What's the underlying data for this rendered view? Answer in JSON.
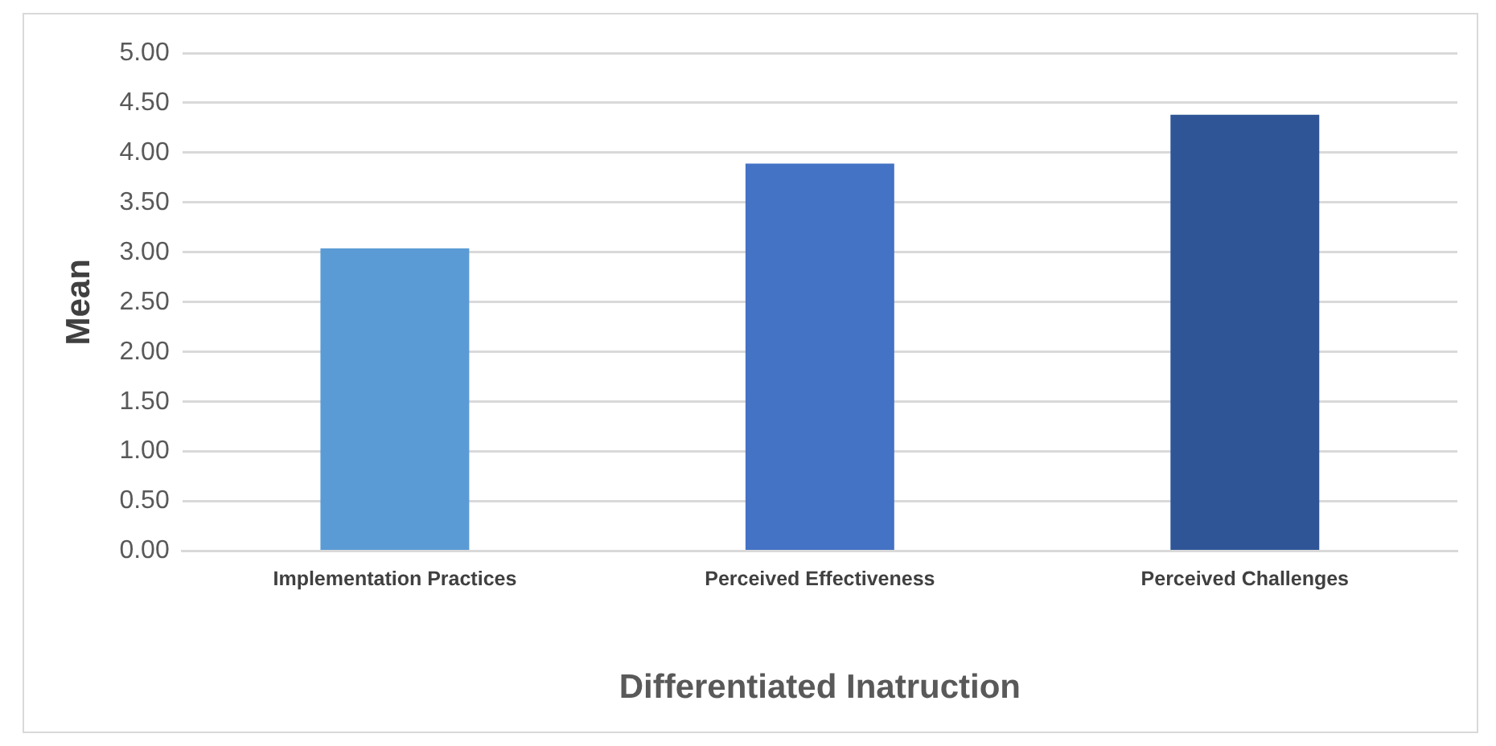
{
  "chart_data": {
    "type": "bar",
    "xlabel": "Differentiated Inatruction",
    "ylabel": "Mean",
    "categories": [
      "Implementation Practices",
      "Perceived Effectiveness",
      "Perceived Challenges"
    ],
    "values": [
      3.04,
      3.89,
      4.38
    ],
    "colors": [
      "#5b9bd5",
      "#4472c4",
      "#2f5597"
    ],
    "ylim": [
      0,
      5
    ],
    "yticks": [
      {
        "value": 0,
        "label": "0.00"
      },
      {
        "value": 0.5,
        "label": "0.50"
      },
      {
        "value": 1,
        "label": "1.00"
      },
      {
        "value": 1.5,
        "label": "1.50"
      },
      {
        "value": 2,
        "label": "2.00"
      },
      {
        "value": 2.5,
        "label": "2.50"
      },
      {
        "value": 3,
        "label": "3.00"
      },
      {
        "value": 3.5,
        "label": "3.50"
      },
      {
        "value": 4,
        "label": "4.00"
      },
      {
        "value": 4.5,
        "label": "4.50"
      },
      {
        "value": 5,
        "label": "5.00"
      }
    ],
    "grid": "y",
    "legend": false
  }
}
